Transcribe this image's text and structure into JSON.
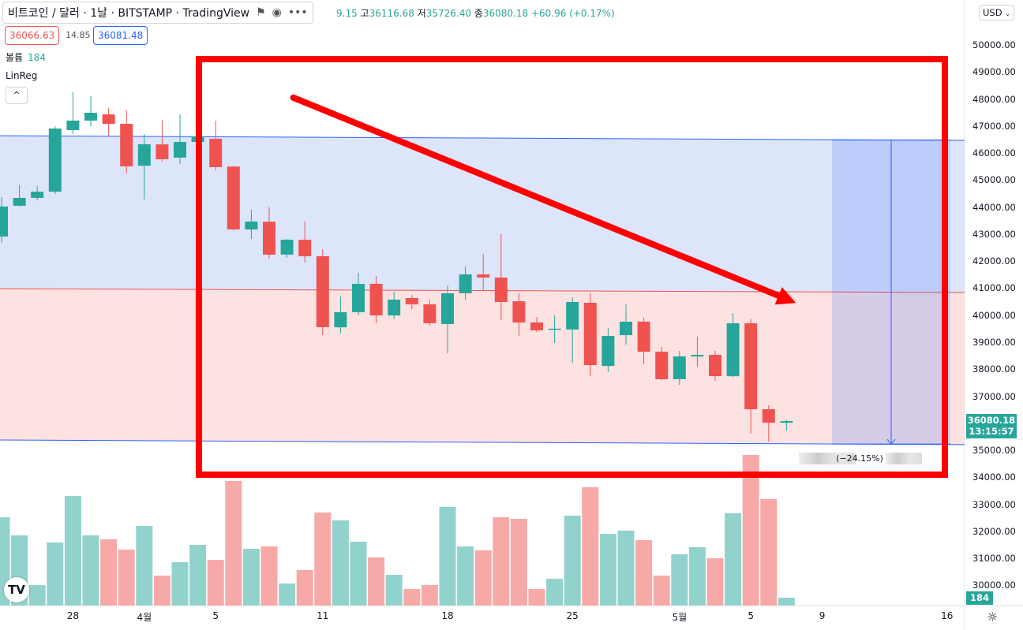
{
  "header": {
    "title": "비트코인 / 달러 · 1날 · BITSTAMP · TradingView",
    "icons": [
      "flag-icon",
      "eye-icon",
      "more-icon"
    ],
    "ohlc_open_fragment": "9.15",
    "high_label": "고",
    "high": "36116.68",
    "low_label": "저",
    "low": "35726.40",
    "close_label": "종",
    "close": "36080.18",
    "change": "+60.96 (+0.17%)",
    "bid": "36066.63",
    "spread": "14.85",
    "ask": "36081.48"
  },
  "legend": {
    "volume_label": "볼륨",
    "volume_value": "184",
    "indicator": "LinReg",
    "collapse_symbol": "^"
  },
  "price_axis": {
    "currency": "USD",
    "ticks": [
      "50000.00",
      "49000.00",
      "48000.00",
      "47000.00",
      "46000.00",
      "45000.00",
      "44000.00",
      "43000.00",
      "42000.00",
      "41000.00",
      "40000.00",
      "39000.00",
      "38000.00",
      "37000.00",
      "35000.00",
      "34000.00",
      "33000.00",
      "32000.00",
      "31000.00",
      "30000.00"
    ],
    "last_price": "36080.18",
    "countdown": "13:15:57",
    "volume_tag": "184"
  },
  "time_axis": {
    "ticks": [
      {
        "label": "28",
        "date": "3-28"
      },
      {
        "label": "4월",
        "date": "4-1"
      },
      {
        "label": "5",
        "date": "4-5"
      },
      {
        "label": "11",
        "date": "4-11"
      },
      {
        "label": "18",
        "date": "4-18"
      },
      {
        "label": "25",
        "date": "4-25"
      },
      {
        "label": "5월",
        "date": "5-1"
      },
      {
        "label": "5",
        "date": "5-5"
      },
      {
        "label": "9",
        "date": "5-9"
      },
      {
        "label": "16",
        "date": "5-16"
      }
    ]
  },
  "measure": {
    "label": "(−24.15%)",
    "from_price": 46480,
    "to_price": 35230,
    "from_date": "5-10",
    "to_date": "5-16"
  },
  "colors": {
    "up": "#26a69a",
    "down": "#ef5350",
    "vol_up": "#92d2cc",
    "vol_down": "#f7a9a7",
    "channel_upper_fill": "#dde5fb",
    "channel_lower_fill": "#fde2e2",
    "annotation": "#ff0000",
    "line": "#2962ff"
  },
  "chart_data": {
    "type": "candlestick",
    "start_date": "3-24",
    "ylim": [
      29500,
      51500
    ],
    "candles": [
      [
        42910,
        44370,
        42680,
        44020
      ],
      [
        44050,
        44810,
        44020,
        44340
      ],
      [
        44340,
        44780,
        44250,
        44570
      ],
      [
        44570,
        46990,
        44485,
        46907
      ],
      [
        46850,
        48250,
        46700,
        47200
      ],
      [
        47200,
        48100,
        46990,
        47490
      ],
      [
        47430,
        47670,
        46615,
        47080
      ],
      [
        47080,
        47580,
        45244,
        45506
      ],
      [
        45530,
        46700,
        44281,
        46323
      ],
      [
        46320,
        47230,
        45680,
        45770
      ],
      [
        45830,
        47430,
        45590,
        46410
      ],
      [
        46410,
        47230,
        46410,
        46615
      ],
      [
        46528,
        47200,
        45360,
        45477
      ],
      [
        45500,
        45530,
        43140,
        43172
      ],
      [
        43170,
        43900,
        42822,
        43464
      ],
      [
        43460,
        43990,
        42090,
        42238
      ],
      [
        42240,
        42820,
        42120,
        42793
      ],
      [
        42790,
        43460,
        41950,
        42180
      ],
      [
        42180,
        42440,
        39262,
        39554
      ],
      [
        39550,
        40692,
        39320,
        40108
      ],
      [
        40110,
        41570,
        39990,
        41158
      ],
      [
        41160,
        41450,
        39699,
        39990
      ],
      [
        39990,
        40870,
        39850,
        40575
      ],
      [
        40633,
        40750,
        40225,
        40400
      ],
      [
        40400,
        40575,
        39610,
        39700
      ],
      [
        39670,
        41100,
        38591,
        40808
      ],
      [
        40810,
        41800,
        40575,
        41509
      ],
      [
        41510,
        42270,
        40925,
        41390
      ],
      [
        41390,
        42997,
        39815,
        40487
      ],
      [
        40515,
        40810,
        39230,
        39729
      ],
      [
        39730,
        39930,
        39380,
        39437
      ],
      [
        39470,
        39990,
        38970,
        39500
      ],
      [
        39470,
        40660,
        38240,
        40487
      ],
      [
        40458,
        40810,
        37745,
        38153
      ],
      [
        38120,
        39525,
        37890,
        39233
      ],
      [
        39260,
        40400,
        38912,
        39758
      ],
      [
        39760,
        39904,
        38182,
        38649
      ],
      [
        38650,
        38824,
        37600,
        37628
      ],
      [
        37630,
        38678,
        37424,
        38474
      ],
      [
        38470,
        39200,
        38094,
        38530
      ],
      [
        38530,
        38680,
        37570,
        37744
      ],
      [
        37740,
        40080,
        37715,
        39699
      ],
      [
        39700,
        39850,
        35614,
        36519
      ],
      [
        36520,
        36665,
        35322,
        36019.22
      ],
      [
        36019.15,
        36116.68,
        35726.4,
        36080.18
      ]
    ],
    "volume": [
      2061,
      1638,
      478,
      1472,
      2558,
      1638,
      1546,
      1306,
      1858,
      699,
      1012,
      1417,
      1067,
      2907,
      1325,
      1380,
      515,
      828,
      2171,
      1987,
      1490,
      1122,
      718,
      386,
      478,
      2300,
      1380,
      1288,
      2061,
      2024,
      386,
      626,
      2098,
      2760,
      1674,
      1748,
      1527,
      699,
      1196,
      1362,
      1104,
      2153,
      3514,
      2484,
      184
    ],
    "linreg": {
      "upper": [
        46640,
        46470
      ],
      "middle": [
        40980,
        40840
      ],
      "lower": [
        35380,
        35210
      ]
    },
    "annotation_arrow": {
      "from": {
        "date": "4-9",
        "price": 48050
      },
      "to": {
        "date": "5-7",
        "price": 40450
      }
    }
  }
}
